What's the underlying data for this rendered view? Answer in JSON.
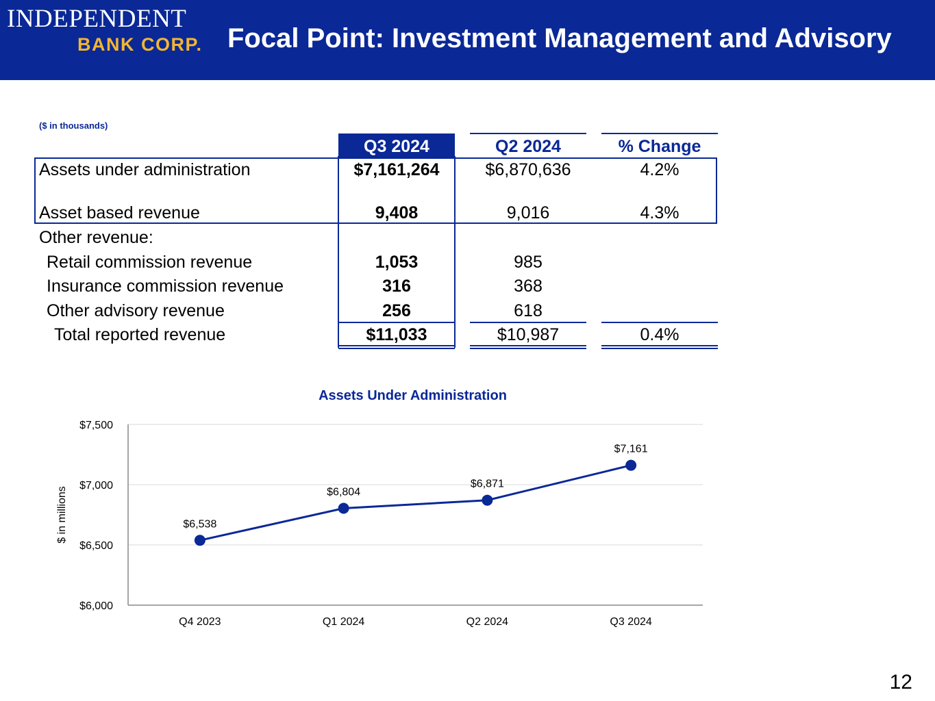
{
  "header": {
    "logo_line1": "INDEPENDENT",
    "logo_line2": "BANK CORP.",
    "title": "Focal Point: Investment Management and Advisory"
  },
  "table": {
    "units_note": "($ in thousands)",
    "columns": [
      "Q3 2024",
      "Q2 2024",
      "% Change"
    ],
    "rows": [
      {
        "label": "Assets under administration",
        "q3": "$7,161,264",
        "q2": "$6,870,636",
        "change": "4.2%"
      },
      {
        "label": "Asset based revenue",
        "q3": "9,408",
        "q2": "9,016",
        "change": "4.3%"
      },
      {
        "label": "Other revenue:",
        "q3": "",
        "q2": "",
        "change": ""
      },
      {
        "label": "Retail commission revenue",
        "q3": "1,053",
        "q2": "985",
        "change": ""
      },
      {
        "label": "Insurance commission revenue",
        "q3": "316",
        "q2": "368",
        "change": ""
      },
      {
        "label": "Other advisory revenue",
        "q3": "256",
        "q2": "618",
        "change": ""
      },
      {
        "label": "Total reported revenue",
        "q3": "$11,033",
        "q2": "$10,987",
        "change": "0.4%"
      }
    ]
  },
  "chart_data": {
    "type": "line",
    "title": "Assets Under Administration",
    "xlabel": "",
    "ylabel": "$ in millions",
    "categories": [
      "Q4 2023",
      "Q1 2024",
      "Q2 2024",
      "Q3 2024"
    ],
    "values": [
      6538,
      6804,
      6871,
      7161
    ],
    "data_labels": [
      "$6,538",
      "$6,804",
      "$6,871",
      "$7,161"
    ],
    "ylim": [
      6000,
      7500
    ],
    "yticks": [
      6000,
      6500,
      7000,
      7500
    ],
    "ytick_labels": [
      "$6,000",
      "$6,500",
      "$7,000",
      "$7,500"
    ],
    "grid": true,
    "legend": "none",
    "series_color": "#0a2896"
  },
  "footer": {
    "page_number": "12"
  }
}
